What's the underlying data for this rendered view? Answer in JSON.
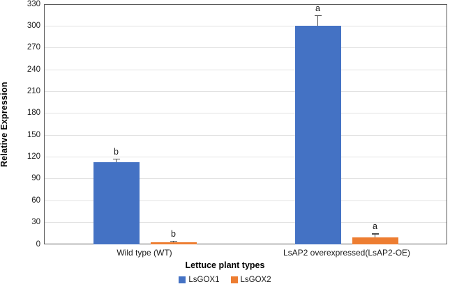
{
  "chart_data": {
    "type": "bar",
    "title": "",
    "categories": [
      "Wild type (WT)",
      "LsAP2 overexpressed(LsAP2-OE)"
    ],
    "series": [
      {
        "name": "LsGOX1",
        "color": "#4472C4",
        "values": [
          113,
          300
        ],
        "errors": [
          5,
          15
        ],
        "sig_letters": [
          "b",
          "a"
        ]
      },
      {
        "name": "LsGOX2",
        "color": "#ED7D31",
        "values": [
          3,
          10
        ],
        "errors": [
          2,
          5
        ],
        "sig_letters": [
          "b",
          "a"
        ]
      }
    ],
    "xlabel": "Lettuce plant types",
    "ylabel": "Relative Expression",
    "ylim": [
      0,
      330
    ],
    "ytick_step": 30,
    "yticks": [
      0,
      30,
      60,
      90,
      120,
      150,
      180,
      210,
      240,
      270,
      300,
      330
    ],
    "grid": true,
    "legend_position": "bottom",
    "colors": {
      "plot_border": "#595959",
      "gridline": "#e2e2e2",
      "error_bar": "#4d4d4d",
      "background": "#ffffff"
    }
  }
}
